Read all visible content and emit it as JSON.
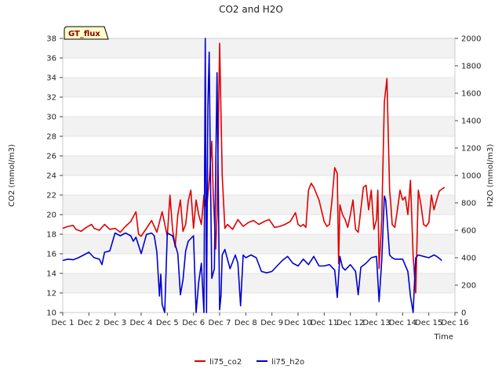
{
  "chart_data": {
    "type": "line",
    "title": "CO2 and H2O",
    "badge": "GT_flux",
    "xlabel": "Time",
    "ylabel_left": "CO2 (mmol/m3)",
    "ylabel_right": "H2O (mmol/m3)",
    "xlim": [
      1,
      16
    ],
    "ylim_left": [
      10,
      38
    ],
    "ylim_right": [
      0,
      2000
    ],
    "x_ticks": [
      1,
      2,
      3,
      4,
      5,
      6,
      7,
      8,
      9,
      10,
      11,
      12,
      13,
      14,
      15,
      16
    ],
    "x_tick_labels": [
      "Dec 1",
      "Dec 2",
      "Dec 3",
      "Dec 4",
      "Dec 5",
      "Dec 6",
      "Dec 7",
      "Dec 8",
      "Dec 9",
      "Dec 10",
      "Dec 11",
      "Dec 12",
      "Dec 13",
      "Dec 14",
      "Dec 15",
      "Dec 16"
    ],
    "y_left_ticks": [
      10,
      12,
      14,
      16,
      18,
      20,
      22,
      24,
      26,
      28,
      30,
      32,
      34,
      36,
      38
    ],
    "y_left_tick_labels": [
      "10",
      "12",
      "14",
      "16",
      "18",
      "20",
      "22",
      "24",
      "26",
      "28",
      "30",
      "32",
      "34",
      "36",
      "38"
    ],
    "y_right_ticks": [
      0,
      200,
      400,
      600,
      800,
      1000,
      1200,
      1400,
      1600,
      1800,
      2000
    ],
    "y_right_tick_labels": [
      "0",
      "200",
      "400",
      "600",
      "800",
      "1000",
      "1200",
      "1400",
      "1600",
      "1800",
      "2000"
    ],
    "grid": "horizontal bands",
    "legend_position": "bottom-center",
    "series": [
      {
        "name": "li75_co2",
        "axis": "left",
        "color": "#e00000",
        "x": [
          1.0,
          1.2,
          1.4,
          1.5,
          1.7,
          1.9,
          2.1,
          2.2,
          2.4,
          2.6,
          2.8,
          3.0,
          3.2,
          3.4,
          3.6,
          3.8,
          3.9,
          4.0,
          4.2,
          4.4,
          4.6,
          4.8,
          5.0,
          5.1,
          5.2,
          5.3,
          5.4,
          5.5,
          5.6,
          5.7,
          5.8,
          5.9,
          6.0,
          6.1,
          6.2,
          6.3,
          6.4,
          6.5,
          6.6,
          6.7,
          6.75,
          6.8,
          6.85,
          6.9,
          7.0,
          7.1,
          7.2,
          7.3,
          7.5,
          7.7,
          7.9,
          8.1,
          8.3,
          8.5,
          8.7,
          8.9,
          9.1,
          9.3,
          9.5,
          9.7,
          9.9,
          10.0,
          10.1,
          10.2,
          10.3,
          10.4,
          10.5,
          10.6,
          10.8,
          11.0,
          11.1,
          11.2,
          11.3,
          11.4,
          11.5,
          11.55,
          11.6,
          11.7,
          11.8,
          11.9,
          12.0,
          12.1,
          12.2,
          12.3,
          12.4,
          12.5,
          12.6,
          12.7,
          12.8,
          12.9,
          13.0,
          13.05,
          13.1,
          13.2,
          13.3,
          13.4,
          13.5,
          13.55,
          13.6,
          13.7,
          13.8,
          13.9,
          14.0,
          14.1,
          14.2,
          14.3,
          14.4,
          14.5,
          14.6,
          14.7,
          14.8,
          14.9,
          15.0,
          15.1,
          15.2,
          15.3,
          15.4,
          15.6
        ],
        "values": [
          18.6,
          18.8,
          18.9,
          18.5,
          18.3,
          18.7,
          19.0,
          18.6,
          18.4,
          19.0,
          18.5,
          18.6,
          18.2,
          18.8,
          19.3,
          20.3,
          18.0,
          17.8,
          18.6,
          19.4,
          18.2,
          20.3,
          17.8,
          22.0,
          18.5,
          16.7,
          20.0,
          21.5,
          18.3,
          19.0,
          21.4,
          22.5,
          18.6,
          21.5,
          20.0,
          19.0,
          22.0,
          20.5,
          23.5,
          27.5,
          22.5,
          19.5,
          16.5,
          20.0,
          37.5,
          24.0,
          18.6,
          19.0,
          18.5,
          19.5,
          18.8,
          19.2,
          19.4,
          19.0,
          19.3,
          19.5,
          18.7,
          18.8,
          19.0,
          19.3,
          20.2,
          19.0,
          18.8,
          19.0,
          18.7,
          22.5,
          23.2,
          22.8,
          21.5,
          19.3,
          18.8,
          19.0,
          21.5,
          24.8,
          24.2,
          15.0,
          21.0,
          20.0,
          19.5,
          18.7,
          20.0,
          21.5,
          18.5,
          18.2,
          20.5,
          22.8,
          23.0,
          20.5,
          22.5,
          18.5,
          19.5,
          22.5,
          14.5,
          19.5,
          31.5,
          33.9,
          22.5,
          21.0,
          19.0,
          18.7,
          20.5,
          22.5,
          21.5,
          21.8,
          20.0,
          23.5,
          15.8,
          12.0,
          22.5,
          21.0,
          19.0,
          18.8,
          19.2,
          22.0,
          20.5,
          21.5,
          22.4,
          22.8
        ]
      },
      {
        "name": "li75_h2o",
        "axis": "right",
        "color": "#0000d0",
        "x": [
          1.0,
          1.2,
          1.4,
          1.6,
          1.8,
          2.0,
          2.2,
          2.4,
          2.5,
          2.6,
          2.8,
          3.0,
          3.2,
          3.4,
          3.6,
          3.7,
          3.8,
          4.0,
          4.2,
          4.4,
          4.5,
          4.6,
          4.7,
          4.75,
          4.8,
          4.9,
          5.0,
          5.2,
          5.4,
          5.5,
          5.6,
          5.7,
          5.8,
          6.0,
          6.1,
          6.2,
          6.3,
          6.4,
          6.45,
          6.5,
          6.55,
          6.6,
          6.65,
          6.7,
          6.8,
          6.9,
          7.0,
          7.05,
          7.1,
          7.2,
          7.4,
          7.6,
          7.7,
          7.8,
          7.9,
          8.0,
          8.2,
          8.4,
          8.6,
          8.8,
          9.0,
          9.2,
          9.4,
          9.6,
          9.8,
          10.0,
          10.2,
          10.4,
          10.6,
          10.8,
          11.0,
          11.2,
          11.4,
          11.5,
          11.6,
          11.7,
          11.8,
          12.0,
          12.2,
          12.3,
          12.4,
          12.6,
          12.8,
          13.0,
          13.1,
          13.2,
          13.3,
          13.35,
          13.4,
          13.5,
          13.6,
          13.7,
          13.8,
          14.0,
          14.2,
          14.3,
          14.4,
          14.5,
          14.6,
          14.8,
          15.0,
          15.2,
          15.3,
          15.5
        ],
        "values": [
          380,
          390,
          385,
          400,
          420,
          440,
          400,
          390,
          350,
          440,
          450,
          580,
          560,
          580,
          560,
          520,
          550,
          430,
          570,
          580,
          560,
          440,
          120,
          280,
          60,
          0,
          580,
          560,
          430,
          130,
          240,
          450,
          520,
          560,
          0,
          220,
          360,
          0,
          2000,
          0,
          1500,
          1900,
          1000,
          250,
          320,
          1750,
          20,
          120,
          420,
          460,
          320,
          420,
          360,
          50,
          420,
          400,
          420,
          400,
          300,
          290,
          300,
          340,
          380,
          410,
          360,
          340,
          390,
          350,
          410,
          340,
          340,
          350,
          310,
          110,
          410,
          330,
          310,
          350,
          300,
          130,
          330,
          360,
          400,
          410,
          80,
          380,
          850,
          820,
          700,
          420,
          400,
          390,
          390,
          390,
          300,
          120,
          0,
          400,
          420,
          410,
          400,
          420,
          410,
          380
        ]
      }
    ]
  }
}
